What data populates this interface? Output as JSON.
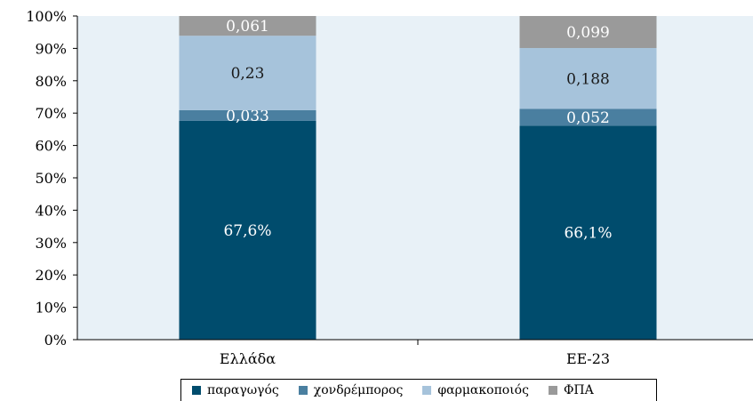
{
  "chart_data": {
    "type": "bar",
    "stacked": true,
    "categories": [
      "Ελλάδα",
      "ΕΕ-23"
    ],
    "series": [
      {
        "name": "παραγωγός",
        "color": "#004c6d",
        "values": [
          0.676,
          0.661
        ],
        "labels": [
          "67,6%",
          "66,1%"
        ],
        "label_color": "#ffffff"
      },
      {
        "name": "χονδρέμπορος",
        "color": "#4a7fa0",
        "values": [
          0.033,
          0.052
        ],
        "labels": [
          "0,033",
          "0,052"
        ],
        "label_color": "#ffffff"
      },
      {
        "name": "φαρμακοποιός",
        "color": "#a6c3db",
        "values": [
          0.23,
          0.188
        ],
        "labels": [
          "0,23",
          "0,188"
        ],
        "label_color": "#1a1a1a"
      },
      {
        "name": "ΦΠΑ",
        "color": "#9a9a9a",
        "values": [
          0.061,
          0.099
        ],
        "labels": [
          "0,061",
          "0,099"
        ],
        "label_color": "#ffffff"
      }
    ],
    "yticks": [
      "0%",
      "10%",
      "20%",
      "30%",
      "40%",
      "50%",
      "60%",
      "70%",
      "80%",
      "90%",
      "100%"
    ],
    "ylim": [
      0,
      1
    ],
    "plot_background": "#e8f1f7",
    "legend_position": "bottom"
  }
}
